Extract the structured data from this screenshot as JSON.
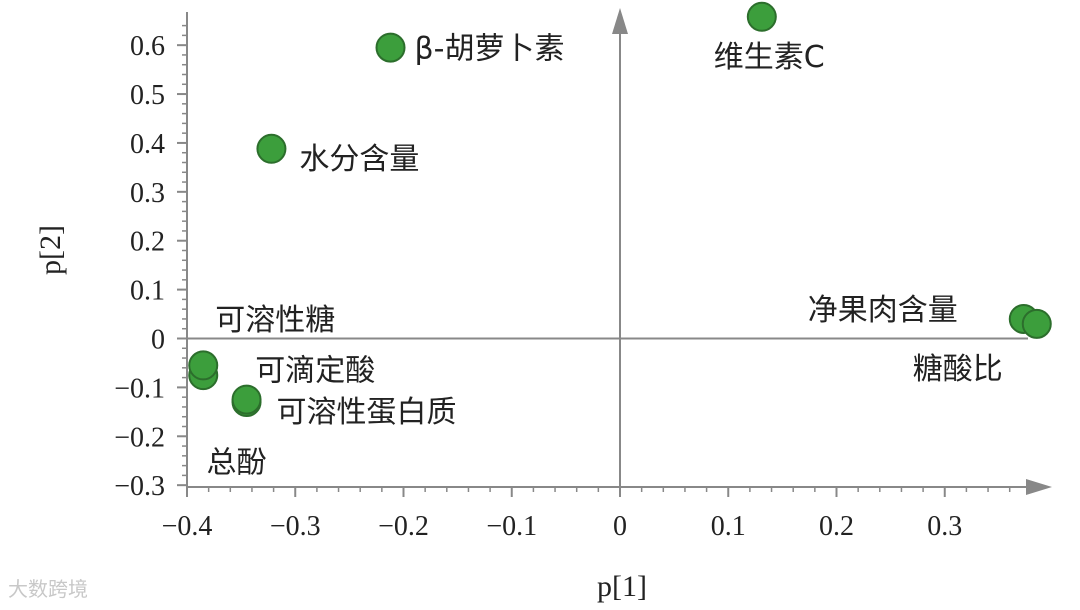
{
  "chart_data": {
    "type": "scatter",
    "xlabel": "p[1]",
    "ylabel": "p[2]",
    "xlim": [
      -0.4,
      0.4
    ],
    "ylim": [
      -0.3,
      0.68
    ],
    "xticks": [
      -0.4,
      -0.3,
      -0.2,
      -0.1,
      0,
      0.1,
      0.2,
      0.3
    ],
    "yticks": [
      -0.3,
      -0.2,
      -0.1,
      0,
      0.1,
      0.2,
      0.3,
      0.4,
      0.5,
      0.6
    ],
    "xtick_labels": [
      "−0.4",
      "−0.3",
      "−0.2",
      "−0.1",
      "0",
      "0.1",
      "0.2",
      "0.3"
    ],
    "ytick_labels": [
      "−0.3",
      "−0.2",
      "−0.1",
      "0",
      "0.1",
      "0.2",
      "0.3",
      "0.4",
      "0.5",
      "0.6"
    ],
    "marker_color": "#3c9e3c",
    "marker_edge": "#2c6e2c",
    "points": [
      {
        "label": "β-胡萝卜素",
        "x": -0.212,
        "y": 0.595
      },
      {
        "label": "维生素C",
        "x": 0.131,
        "y": 0.658
      },
      {
        "label": "水分含量",
        "x": -0.322,
        "y": 0.388
      },
      {
        "label": "可溶性糖",
        "x": -0.385,
        "y": -0.075
      },
      {
        "label": "可滴定酸",
        "x": -0.385,
        "y": -0.055
      },
      {
        "label": "可溶性蛋白质",
        "x": -0.345,
        "y": -0.13
      },
      {
        "label": "总酚",
        "x": -0.345,
        "y": -0.125
      },
      {
        "label": "净果肉含量",
        "x": 0.373,
        "y": 0.04
      },
      {
        "label": "糖酸比",
        "x": 0.385,
        "y": 0.03
      }
    ]
  },
  "watermark": "大数跨境"
}
